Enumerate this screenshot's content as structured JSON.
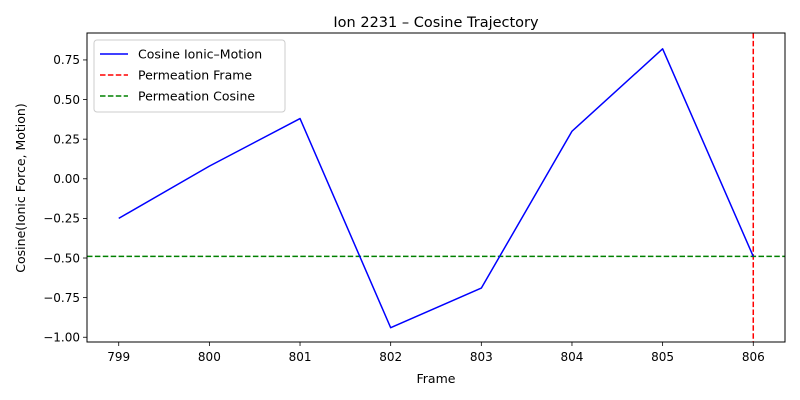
{
  "chart_data": {
    "type": "line",
    "title": "Ion 2231 – Cosine Trajectory",
    "xlabel": "Frame",
    "ylabel": "Cosine(Ionic Force, Motion)",
    "x": [
      799,
      800,
      801,
      802,
      803,
      804,
      805,
      806
    ],
    "series": [
      {
        "name": "Cosine Ionic–Motion",
        "color": "#0000ff",
        "values": [
          -0.25,
          0.08,
          0.38,
          -0.94,
          -0.69,
          0.3,
          0.82,
          -0.49
        ]
      }
    ],
    "reference_lines": [
      {
        "name": "Permeation Frame",
        "orientation": "vertical",
        "value": 806,
        "color": "#ff0000",
        "style": "dashed"
      },
      {
        "name": "Permeation Cosine",
        "orientation": "horizontal",
        "value": -0.49,
        "color": "#008000",
        "style": "dashed"
      }
    ],
    "xlim": [
      798.65,
      806.35
    ],
    "ylim": [
      -1.03,
      0.92
    ],
    "xticks": [
      799,
      800,
      801,
      802,
      803,
      804,
      805,
      806
    ],
    "yticks": [
      -1.0,
      -0.75,
      -0.5,
      -0.25,
      0.0,
      0.25,
      0.5,
      0.75
    ],
    "ytick_labels": [
      "−1.00",
      "−0.75",
      "−0.50",
      "−0.25",
      "0.00",
      "0.25",
      "0.50",
      "0.75"
    ],
    "grid": false,
    "legend": "upper-left"
  }
}
